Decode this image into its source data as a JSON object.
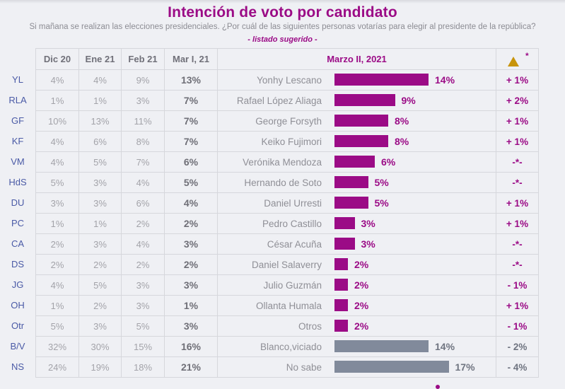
{
  "header": {
    "title": "Intención de voto por candidato",
    "subtitle": "Si mañana se realizan las elecciones presidenciales. ¿Por cuál de las siguientes personas votarías para elegir al presidente de la república?",
    "note": "- listado sugerido -"
  },
  "table": {
    "columns": [
      "Dic 20",
      "Ene 21",
      "Feb 21",
      "Mar I, 21"
    ],
    "chart_column": "Marzo II, 2021",
    "delta_column_icon": "up-triangle-icon",
    "delta_column_asterisk": "*"
  },
  "colors": {
    "accent": "#9b0b86",
    "neutral_bar": "#818a9b",
    "triangle": "#c8940a",
    "row_label": "#4a5aa6"
  },
  "chart_data": {
    "type": "bar",
    "orientation": "horizontal",
    "title": "Intención de voto por candidato",
    "subtitle": "Si mañana se realizan las elecciones presidenciales. ¿Por cuál de las siguientes personas votarías para elegir al presidente de la república?",
    "series_name": "Marzo II, 2021",
    "unit": "%",
    "xlim": [
      0,
      40
    ],
    "grid": false,
    "rows": [
      {
        "code": "YL",
        "name": "Yonhy Lescano",
        "dic20": "4%",
        "ene21": "4%",
        "feb21": "9%",
        "mar1": "13%",
        "value": 14,
        "label": "14%",
        "delta": "+ 1%",
        "kind": "candidate"
      },
      {
        "code": "RLA",
        "name": "Rafael López Aliaga",
        "dic20": "1%",
        "ene21": "1%",
        "feb21": "3%",
        "mar1": "7%",
        "value": 9,
        "label": "9%",
        "delta": "+ 2%",
        "kind": "candidate"
      },
      {
        "code": "GF",
        "name": "George Forsyth",
        "dic20": "10%",
        "ene21": "13%",
        "feb21": "11%",
        "mar1": "7%",
        "value": 8,
        "label": "8%",
        "delta": "+ 1%",
        "kind": "candidate"
      },
      {
        "code": "KF",
        "name": "Keiko Fujimori",
        "dic20": "4%",
        "ene21": "6%",
        "feb21": "8%",
        "mar1": "7%",
        "value": 8,
        "label": "8%",
        "delta": "+ 1%",
        "kind": "candidate"
      },
      {
        "code": "VM",
        "name": "Verónika Mendoza",
        "dic20": "4%",
        "ene21": "5%",
        "feb21": "7%",
        "mar1": "6%",
        "value": 6,
        "label": "6%",
        "delta": "-*-",
        "kind": "candidate"
      },
      {
        "code": "HdS",
        "name": "Hernando de Soto",
        "dic20": "5%",
        "ene21": "3%",
        "feb21": "4%",
        "mar1": "5%",
        "value": 5,
        "label": "5%",
        "delta": "-*-",
        "kind": "candidate"
      },
      {
        "code": "DU",
        "name": "Daniel Urresti",
        "dic20": "3%",
        "ene21": "3%",
        "feb21": "6%",
        "mar1": "4%",
        "value": 5,
        "label": "5%",
        "delta": "+ 1%",
        "kind": "candidate"
      },
      {
        "code": "PC",
        "name": "Pedro Castillo",
        "dic20": "1%",
        "ene21": "1%",
        "feb21": "2%",
        "mar1": "2%",
        "value": 3,
        "label": "3%",
        "delta": "+ 1%",
        "kind": "candidate"
      },
      {
        "code": "CA",
        "name": "César Acuña",
        "dic20": "2%",
        "ene21": "3%",
        "feb21": "4%",
        "mar1": "3%",
        "value": 3,
        "label": "3%",
        "delta": "-*-",
        "kind": "candidate"
      },
      {
        "code": "DS",
        "name": "Daniel Salaverry",
        "dic20": "2%",
        "ene21": "2%",
        "feb21": "2%",
        "mar1": "2%",
        "value": 2,
        "label": "2%",
        "delta": "-*-",
        "kind": "candidate"
      },
      {
        "code": "JG",
        "name": "Julio Guzmán",
        "dic20": "4%",
        "ene21": "5%",
        "feb21": "3%",
        "mar1": "3%",
        "value": 2,
        "label": "2%",
        "delta": "- 1%",
        "kind": "candidate"
      },
      {
        "code": "OH",
        "name": "Ollanta Humala",
        "dic20": "1%",
        "ene21": "2%",
        "feb21": "3%",
        "mar1": "1%",
        "value": 2,
        "label": "2%",
        "delta": "+ 1%",
        "kind": "candidate"
      },
      {
        "code": "Otr",
        "name": "Otros",
        "dic20": "5%",
        "ene21": "3%",
        "feb21": "5%",
        "mar1": "3%",
        "value": 2,
        "label": "2%",
        "delta": "- 1%",
        "kind": "candidate"
      },
      {
        "code": "B/V",
        "name": "Blanco,viciado",
        "dic20": "32%",
        "ene21": "30%",
        "feb21": "15%",
        "mar1": "16%",
        "value": 14,
        "label": "14%",
        "delta": "- 2%",
        "kind": "other"
      },
      {
        "code": "NS",
        "name": "No sabe",
        "dic20": "24%",
        "ene21": "19%",
        "feb21": "18%",
        "mar1": "21%",
        "value": 17,
        "label": "17%",
        "delta": "- 4%",
        "kind": "other"
      }
    ]
  }
}
